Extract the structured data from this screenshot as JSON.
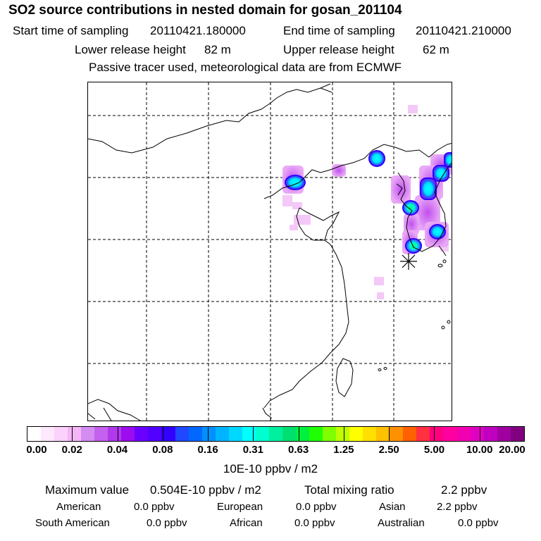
{
  "header": {
    "title": "SO2 source contributions in nested domain for gosan_201104",
    "start_label": "Start time of sampling",
    "start_value": "20110421.180000",
    "end_label": "End time of sampling",
    "end_value": "20110421.210000",
    "lower_label": "Lower release height",
    "lower_value": "82 m",
    "upper_label": "Upper release height",
    "upper_value": "62 m",
    "note": "Passive tracer used, meteorological data are from ECMWF"
  },
  "colorbar": {
    "colors": [
      "#ffffff",
      "#fde8fd",
      "#fbd2fb",
      "#f5b6f8",
      "#d48cf1",
      "#c461ee",
      "#b039ec",
      "#9c0cf0",
      "#6a00ff",
      "#5200ff",
      "#3300ff",
      "#2048ff",
      "#0068ff",
      "#0090ff",
      "#00b4ff",
      "#00d8ff",
      "#00ffff",
      "#00ffd0",
      "#00f0a0",
      "#00e070",
      "#00f040",
      "#20ff00",
      "#80ff00",
      "#c0ff00",
      "#ffff00",
      "#ffe000",
      "#ffc000",
      "#ff9000",
      "#ff6000",
      "#ff3040",
      "#ff0080",
      "#ff00a0",
      "#f000b0",
      "#e000c0",
      "#c000c0",
      "#a000a0",
      "#800080"
    ],
    "ticks": [
      "0.00",
      "0.02",
      "0.04",
      "0.08",
      "0.16",
      "0.31",
      "0.63",
      "1.25",
      "2.50",
      "5.00",
      "10.00",
      "20.00"
    ],
    "units": "10E-10 ppbv / m2"
  },
  "stats": {
    "max_label": "Maximum value",
    "max_value": "0.504E-10 ppbv / m2",
    "total_label": "Total mixing ratio",
    "total_value": "2.2 ppbv",
    "regions": [
      {
        "name": "American",
        "value": "0.0 ppbv"
      },
      {
        "name": "European",
        "value": "0.0 ppbv"
      },
      {
        "name": "Asian",
        "value": "2.2 ppbv"
      },
      {
        "name": "South American",
        "value": "0.0 ppbv"
      },
      {
        "name": "African",
        "value": "0.0 ppbv"
      },
      {
        "name": "Australian",
        "value": "0.0 ppbv"
      }
    ]
  },
  "map": {
    "station_marker": "gosan",
    "colors": {
      "coast": "#000000",
      "grid": "#000000",
      "high": "#00ffff",
      "mid": "#00ff80",
      "edge": "#3300ff",
      "low": "#cc44f0",
      "faint": "#f3c6f7"
    }
  }
}
